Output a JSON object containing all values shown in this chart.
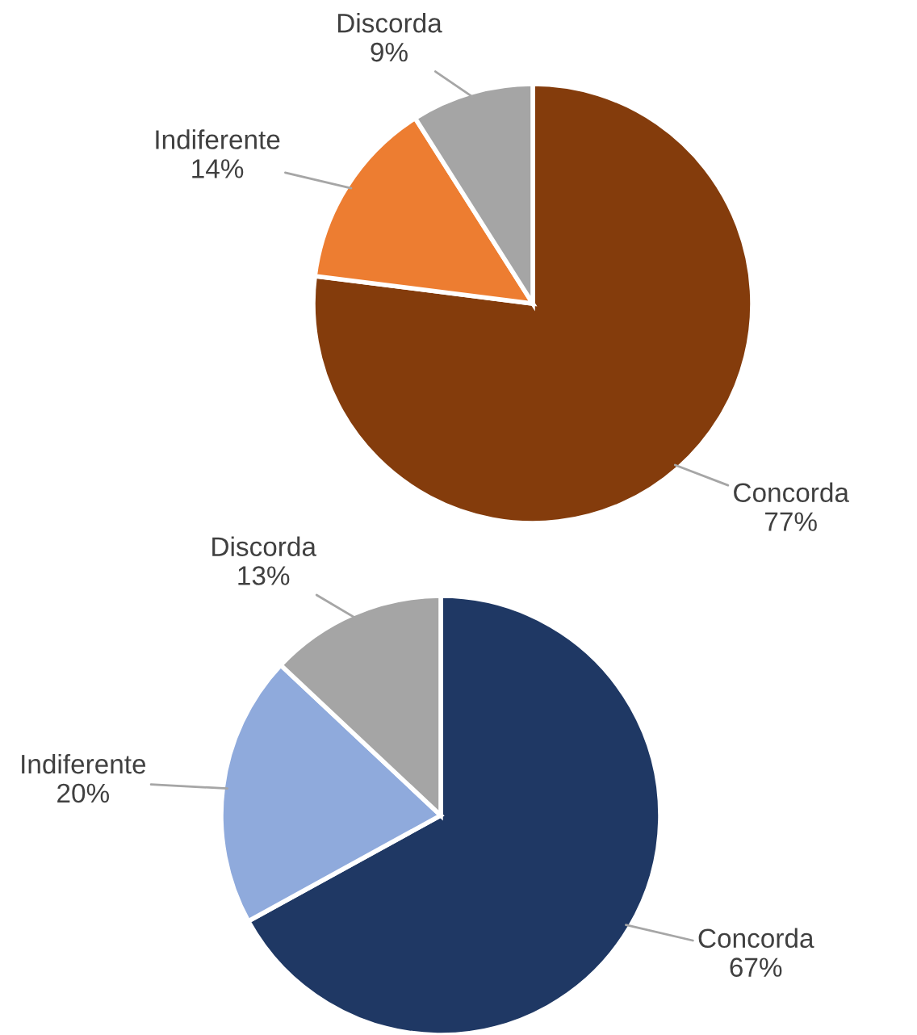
{
  "chart_data": [
    {
      "type": "pie",
      "categories": [
        "Concorda",
        "Indiferente",
        "Discorda"
      ],
      "values": [
        77,
        14,
        9
      ],
      "value_labels": [
        "77%",
        "14%",
        "9%"
      ],
      "colors": [
        "#843c0c",
        "#ed7d31",
        "#a5a5a5"
      ]
    },
    {
      "type": "pie",
      "categories": [
        "Concorda",
        "Indiferente",
        "Discorda"
      ],
      "values": [
        67,
        20,
        13
      ],
      "value_labels": [
        "67%",
        "20%",
        "13%"
      ],
      "colors": [
        "#1f3864",
        "#8faadc",
        "#a5a5a5"
      ]
    }
  ]
}
